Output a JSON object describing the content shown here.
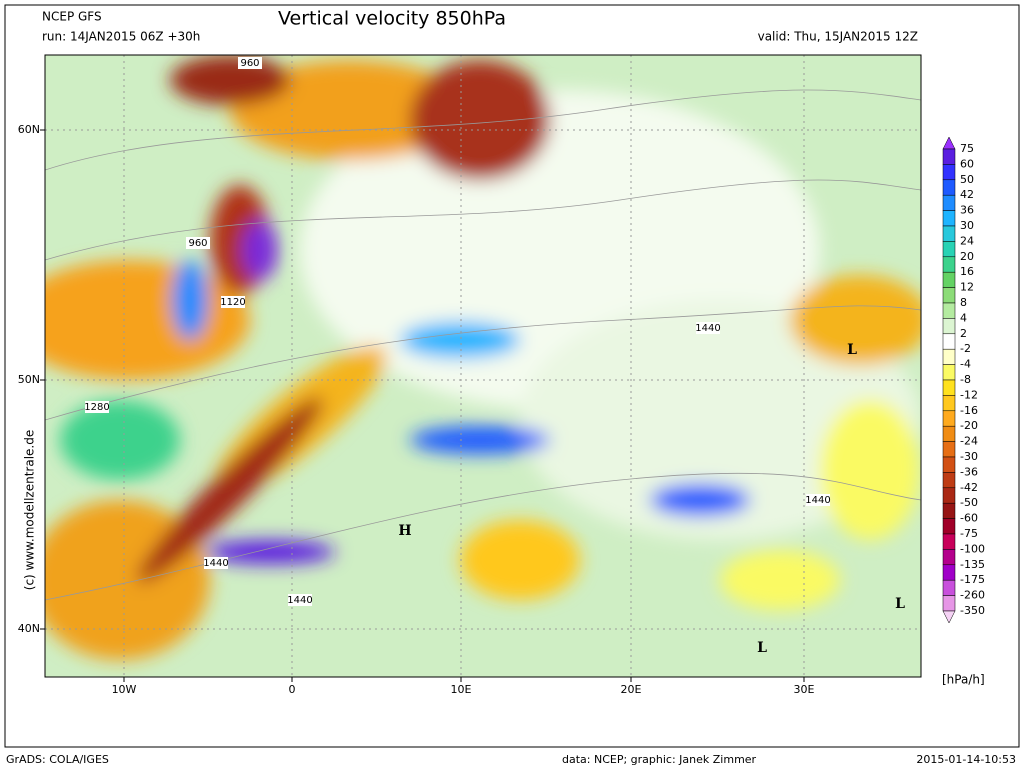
{
  "header": {
    "model": "NCEP GFS",
    "run": "run: 14JAN2015 06Z +30h",
    "title": "Vertical velocity 850hPa",
    "valid": "valid: Thu, 15JAN2015 12Z"
  },
  "map": {
    "lat_labels": [
      "60N",
      "50N",
      "40N"
    ],
    "lon_labels": [
      "10W",
      "0",
      "10E",
      "20E",
      "30E"
    ],
    "contour_labels": [
      "960",
      "960",
      "1120",
      "1280",
      "1440",
      "1440",
      "1440",
      "1440"
    ],
    "pressure_centers": [
      "L",
      "L",
      "L",
      "H"
    ]
  },
  "colorbar": {
    "labels": [
      "75",
      "60",
      "50",
      "42",
      "36",
      "30",
      "24",
      "20",
      "16",
      "12",
      "8",
      "4",
      "2",
      "-2",
      "-4",
      "-8",
      "-12",
      "-16",
      "-20",
      "-24",
      "-30",
      "-36",
      "-42",
      "-50",
      "-60",
      "-75",
      "-100",
      "-135",
      "-175",
      "-260",
      "-350"
    ],
    "colors": [
      "#9b30ff",
      "#5a1ee0",
      "#3232ff",
      "#1e5aff",
      "#1e8cff",
      "#1eb4ff",
      "#28c8dc",
      "#28d2b4",
      "#3cd28c",
      "#64d264",
      "#8cdc78",
      "#b4eba0",
      "#dcf5d2",
      "#ffffff",
      "#ffffc8",
      "#fafa64",
      "#ffe11e",
      "#ffc81e",
      "#ffaa1e",
      "#f08c14",
      "#e66e14",
      "#d25014",
      "#be3c14",
      "#aa2814",
      "#961414",
      "#a00028",
      "#c8005a",
      "#b4008c",
      "#a000c8",
      "#c850dc",
      "#e696e6",
      "#f5d2f5"
    ],
    "unit": "[hPa/h]"
  },
  "credit": "(c) www.modellzentrale.de",
  "footer": {
    "left": "GrADS: COLA/IGES",
    "middle": "data: NCEP; graphic: Janek Zimmer",
    "right": "2015-01-14-10:53"
  }
}
